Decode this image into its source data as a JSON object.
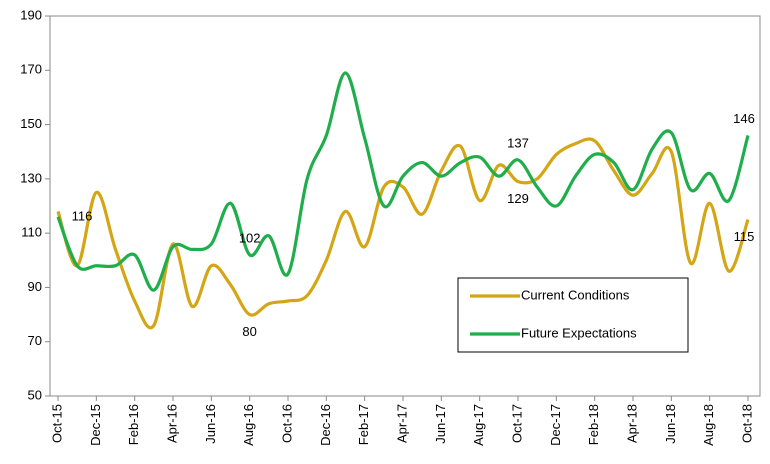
{
  "chart_data": {
    "type": "line",
    "categories": [
      "Oct-15",
      null,
      "Dec-15",
      null,
      "Feb-16",
      null,
      "Apr-16",
      null,
      "Jun-16",
      null,
      "Aug-16",
      null,
      "Oct-16",
      null,
      "Dec-16",
      null,
      "Feb-17",
      null,
      "Apr-17",
      null,
      "Jun-17",
      null,
      "Aug-17",
      null,
      "Oct-17",
      null,
      "Dec-17",
      null,
      "Feb-18",
      null,
      "Apr-18",
      null,
      "Jun-18",
      null,
      "Aug-18",
      null,
      "Oct-18"
    ],
    "series": [
      {
        "name": "Current Conditions",
        "color": "#d4a514",
        "values": [
          118,
          98,
          125,
          104,
          85,
          76,
          106,
          83,
          98,
          91,
          80,
          84,
          85,
          87,
          100,
          118,
          105,
          127,
          127,
          117,
          133,
          142,
          122,
          135,
          129,
          130,
          139,
          143,
          144,
          133,
          124,
          132,
          140,
          99,
          121,
          96,
          115
        ],
        "value_labels": [
          null,
          null,
          null,
          null,
          null,
          null,
          null,
          null,
          null,
          null,
          "80",
          null,
          null,
          null,
          null,
          null,
          null,
          null,
          null,
          null,
          null,
          null,
          null,
          null,
          "129",
          null,
          null,
          null,
          null,
          null,
          null,
          null,
          null,
          null,
          null,
          null,
          "115"
        ]
      },
      {
        "name": "Future Expectations",
        "color": "#1fae4b",
        "values": [
          116,
          98,
          98,
          98,
          102,
          89,
          105,
          104,
          106,
          121,
          102,
          109,
          95,
          130,
          146,
          169,
          145,
          120,
          131,
          136,
          131,
          136,
          138,
          131,
          137,
          127,
          120,
          131,
          139,
          136,
          126,
          141,
          147,
          126,
          132,
          122,
          146
        ],
        "value_labels": [
          "116",
          null,
          null,
          null,
          null,
          null,
          null,
          null,
          null,
          null,
          "102",
          null,
          null,
          null,
          null,
          null,
          null,
          null,
          null,
          null,
          null,
          null,
          null,
          null,
          "137",
          null,
          null,
          null,
          null,
          null,
          null,
          null,
          null,
          null,
          null,
          null,
          "146"
        ]
      }
    ],
    "ylim": [
      50,
      190
    ],
    "yticks": [
      50,
      70,
      90,
      110,
      130,
      150,
      170,
      190
    ],
    "grid": false,
    "legend": "lower right"
  }
}
